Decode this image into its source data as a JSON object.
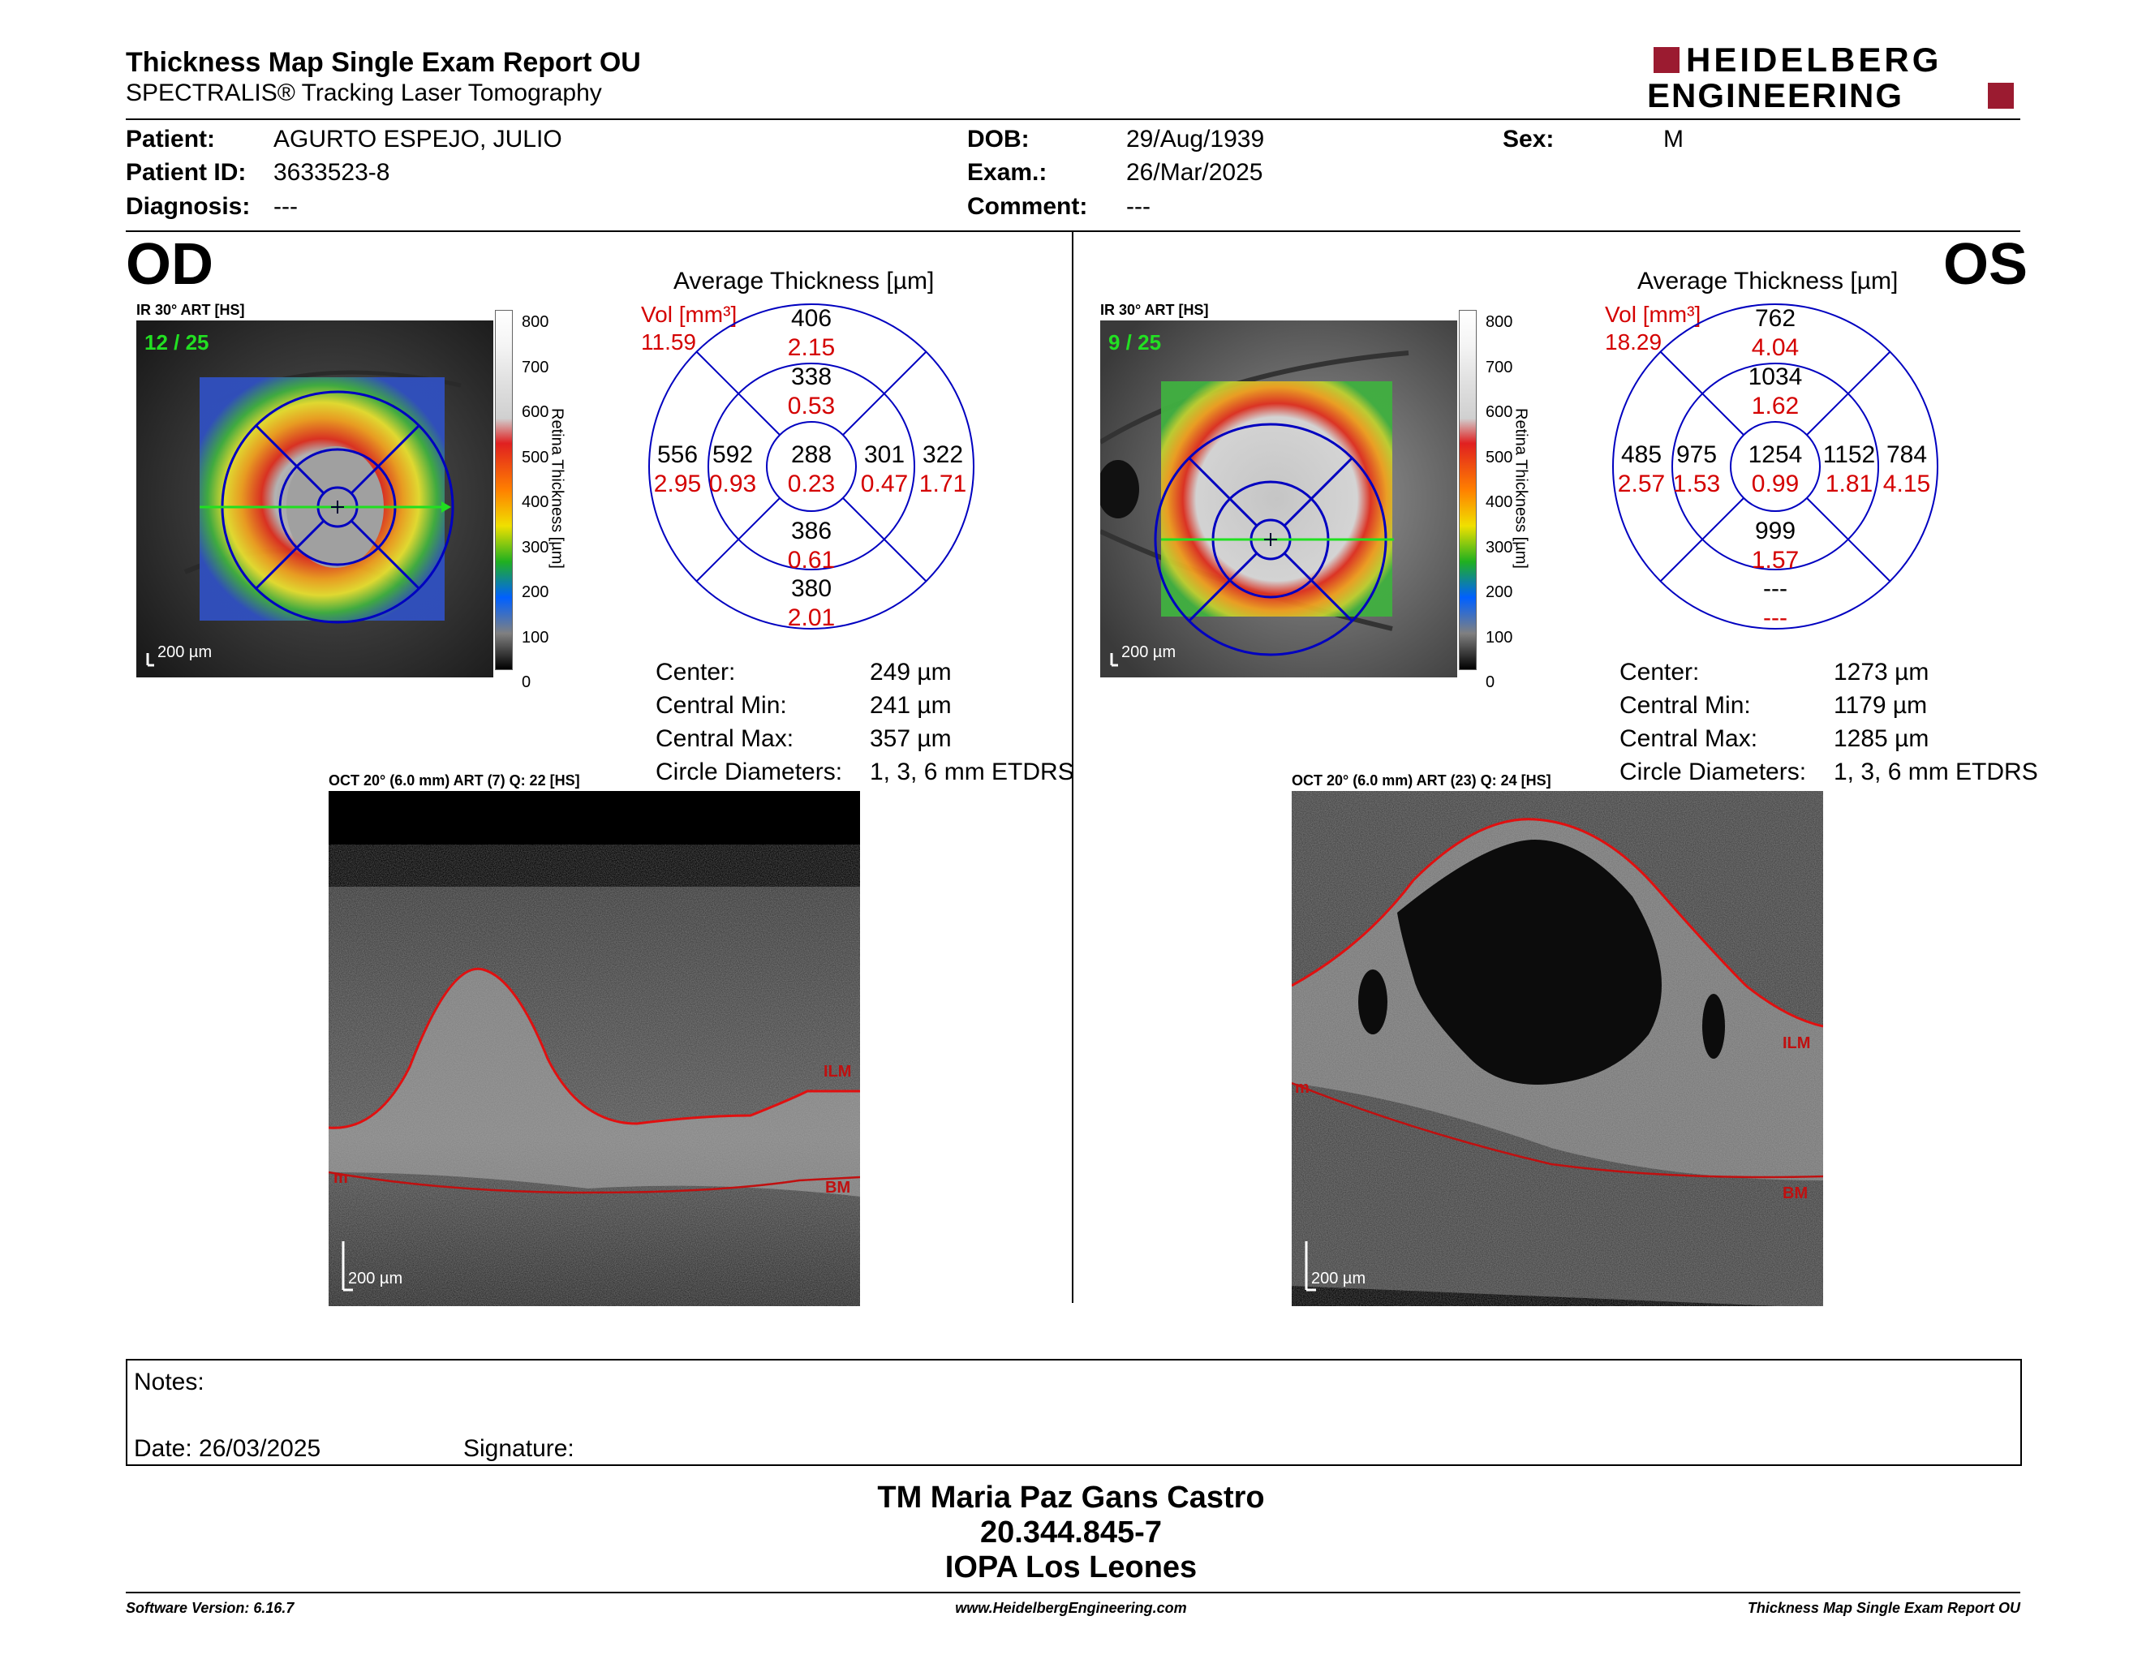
{
  "header": {
    "title": "Thickness Map Single Exam Report OU",
    "subtitle": "SPECTRALIS® Tracking Laser Tomography",
    "logo_line1": "HEIDELBERG",
    "logo_line2": "ENGINEERING",
    "brand_color": "#9b1b30"
  },
  "patient": {
    "patient_label": "Patient:",
    "patient_value": "AGURTO ESPEJO, JULIO",
    "id_label": "Patient ID:",
    "id_value": "3633523-8",
    "diag_label": "Diagnosis:",
    "diag_value": "---",
    "dob_label": "DOB:",
    "dob_value": "29/Aug/1939",
    "exam_label": "Exam.:",
    "exam_value": "26/Mar/2025",
    "comment_label": "Comment:",
    "comment_value": "---",
    "sex_label": "Sex:",
    "sex_value": "M"
  },
  "od": {
    "eye": "OD",
    "ir_label": "IR 30° ART [HS]",
    "frame": "12 / 25",
    "scale_ir": "200 µm",
    "colorbar_ticks": [
      "800",
      "700",
      "600",
      "500",
      "400",
      "300",
      "200",
      "100",
      "0"
    ],
    "colorbar_label": "Retina Thickness [µm]",
    "avg_title": "Average Thickness [µm]",
    "vol_label": "Vol [mm³]",
    "vol_total": "11.59",
    "sectors": {
      "outer_sup": {
        "t": "406",
        "v": "2.15"
      },
      "inner_sup": {
        "t": "338",
        "v": "0.53"
      },
      "outer_temp": {
        "t": "556",
        "v": "2.95"
      },
      "inner_temp": {
        "t": "592",
        "v": "0.93"
      },
      "center": {
        "t": "288",
        "v": "0.23"
      },
      "inner_nas": {
        "t": "301",
        "v": "0.47"
      },
      "outer_nas": {
        "t": "322",
        "v": "1.71"
      },
      "inner_inf": {
        "t": "386",
        "v": "0.61"
      },
      "outer_inf": {
        "t": "380",
        "v": "2.01"
      }
    },
    "stats": [
      {
        "label": "Center:",
        "value": "249 µm"
      },
      {
        "label": "Central Min:",
        "value": "241 µm"
      },
      {
        "label": "Central Max:",
        "value": "357 µm"
      },
      {
        "label": "Circle Diameters:",
        "value": "1, 3, 6 mm ETDRS"
      }
    ],
    "oct_label": "OCT 20° (6.0 mm) ART (7) Q: 22 [HS]",
    "ilm": "ILM",
    "bm": "BM",
    "tm": "m",
    "scale_oct": "200 µm"
  },
  "os": {
    "eye": "OS",
    "ir_label": "IR 30° ART [HS]",
    "frame": "9 / 25",
    "scale_ir": "200 µm",
    "colorbar_ticks": [
      "800",
      "700",
      "600",
      "500",
      "400",
      "300",
      "200",
      "100",
      "0"
    ],
    "colorbar_label": "Retina Thickness [µm]",
    "avg_title": "Average Thickness [µm]",
    "vol_label": "Vol [mm³]",
    "vol_total": "18.29",
    "sectors": {
      "outer_sup": {
        "t": "762",
        "v": "4.04"
      },
      "inner_sup": {
        "t": "1034",
        "v": "1.62"
      },
      "outer_temp": {
        "t": "485",
        "v": "2.57"
      },
      "inner_temp": {
        "t": "975",
        "v": "1.53"
      },
      "center": {
        "t": "1254",
        "v": "0.99"
      },
      "inner_nas": {
        "t": "1152",
        "v": "1.81"
      },
      "outer_nas": {
        "t": "784",
        "v": "4.15"
      },
      "inner_inf": {
        "t": "999",
        "v": "1.57"
      },
      "outer_inf": {
        "t": "---",
        "v": "---"
      }
    },
    "stats": [
      {
        "label": "Center:",
        "value": "1273 µm"
      },
      {
        "label": "Central Min:",
        "value": "1179 µm"
      },
      {
        "label": "Central Max:",
        "value": "1285 µm"
      },
      {
        "label": "Circle Diameters:",
        "value": "1, 3, 6 mm ETDRS"
      }
    ],
    "oct_label": "OCT 20° (6.0 mm) ART (23) Q: 24 [HS]",
    "ilm": "ILM",
    "bm": "BM",
    "tm": "m",
    "scale_oct": "200 µm"
  },
  "notes": {
    "notes_label": "Notes:",
    "date_label": "Date: 26/03/2025",
    "signature_label": "Signature:"
  },
  "signature_block": {
    "name": "TM Maria Paz Gans Castro",
    "rut": "20.344.845-7",
    "place": "IOPA Los Leones"
  },
  "footer": {
    "software": "Software Version: 6.16.7",
    "url": "www.HeidelbergEngineering.com",
    "report": "Thickness Map Single Exam Report OU"
  }
}
